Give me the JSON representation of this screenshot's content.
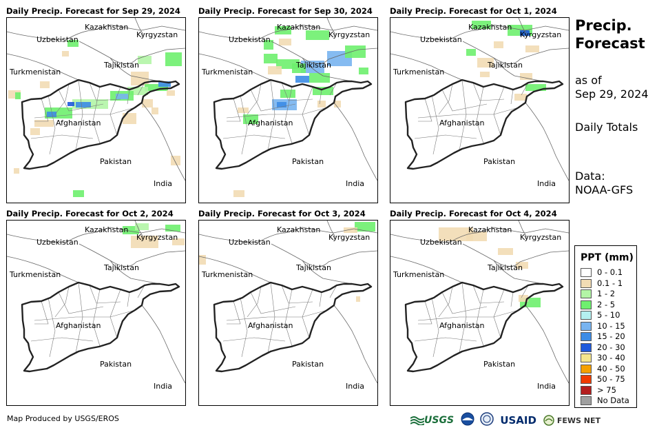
{
  "panels": [
    {
      "title": "Daily Precip. Forecast for Sep 29, 2024"
    },
    {
      "title": "Daily Precip. Forecast for Sep 30, 2024"
    },
    {
      "title": "Daily Precip. Forecast for Oct 1, 2024"
    },
    {
      "title": "Daily Precip. Forecast for Oct 2, 2024"
    },
    {
      "title": "Daily Precip. Forecast for Oct 3, 2024"
    },
    {
      "title": "Daily Precip. Forecast for Oct 4, 2024"
    }
  ],
  "countries": {
    "kazakhstan": "Kazakhstan",
    "kyrgyzstan": "Kyrgyzstan",
    "uzbekistan": "Uzbekistan",
    "tajikistan": "Tajikistan",
    "turkmenistan": "Turkmenistan",
    "afghanistan": "Afghanistan",
    "pakistan": "Pakistan",
    "india": "India"
  },
  "sidebar": {
    "title_line1": "Precip.",
    "title_line2": "Forecast",
    "asof_line1": "as of",
    "asof_line2": "Sep 29, 2024",
    "daily": "Daily Totals",
    "data_line1": "Data:",
    "data_line2": "NOAA-GFS"
  },
  "legend": {
    "title": "PPT (mm)",
    "items": [
      {
        "label": "0 - 0.1",
        "color": "#ffffff"
      },
      {
        "label": "0.1 - 1",
        "color": "#f2dcb4"
      },
      {
        "label": "1 - 2",
        "color": "#b3f5a6"
      },
      {
        "label": "2 - 5",
        "color": "#6ef06e"
      },
      {
        "label": "5 - 10",
        "color": "#b4f0f0"
      },
      {
        "label": "10 - 15",
        "color": "#78b4f0"
      },
      {
        "label": "15 - 20",
        "color": "#3c8ce6"
      },
      {
        "label": "20 - 30",
        "color": "#1e5adc"
      },
      {
        "label": "30 - 40",
        "color": "#f5e68c"
      },
      {
        "label": "40 - 50",
        "color": "#f5a000"
      },
      {
        "label": "50 - 75",
        "color": "#f03c00"
      },
      {
        "label": "> 75",
        "color": "#b41e1e"
      },
      {
        "label": "No Data",
        "color": "#a0a0a0"
      }
    ]
  },
  "footer": "Map Produced by USGS/EROS",
  "logos": {
    "usgs": "USGS",
    "usaid": "USAID",
    "fewsnet": "FEWS NET"
  }
}
